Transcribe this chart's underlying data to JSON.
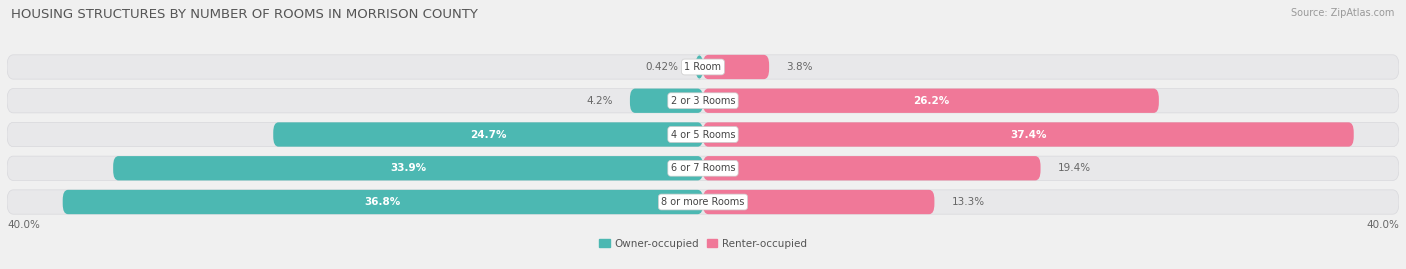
{
  "title": "HOUSING STRUCTURES BY NUMBER OF ROOMS IN MORRISON COUNTY",
  "source": "Source: ZipAtlas.com",
  "categories": [
    "1 Room",
    "2 or 3 Rooms",
    "4 or 5 Rooms",
    "6 or 7 Rooms",
    "8 or more Rooms"
  ],
  "owner_values": [
    0.42,
    4.2,
    24.7,
    33.9,
    36.8
  ],
  "renter_values": [
    3.8,
    26.2,
    37.4,
    19.4,
    13.3
  ],
  "owner_color": "#4cb8b2",
  "renter_color": "#f07898",
  "owner_label": "Owner-occupied",
  "renter_label": "Renter-occupied",
  "axis_max": 40.0,
  "axis_label_left": "40.0%",
  "axis_label_right": "40.0%",
  "bg_color": "#f0f0f0",
  "row_bg_color": "#e8e8ea",
  "row_border_color": "#d8d8dc",
  "title_fontsize": 9.5,
  "source_fontsize": 7,
  "bar_label_fontsize": 7.5,
  "category_fontsize": 7,
  "axis_fontsize": 7.5,
  "legend_fontsize": 7.5
}
